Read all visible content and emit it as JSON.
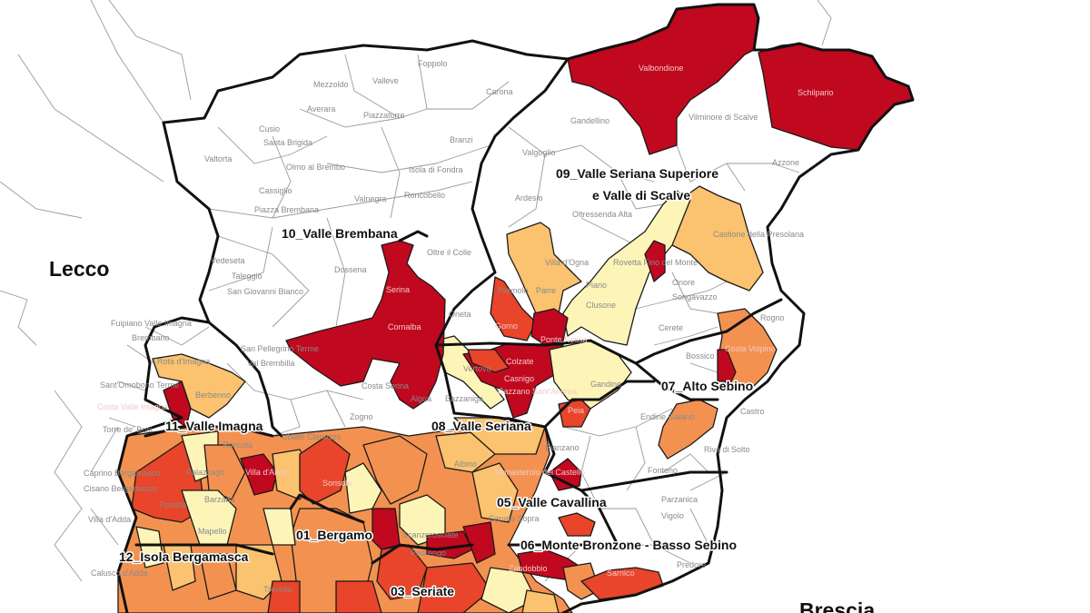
{
  "map": {
    "province_labels": [
      "Lecco",
      "Brescia"
    ],
    "district_labels": [
      "10_Valle Brembana",
      "09_Valle Seriana Superiore",
      "e Valle di Scalve",
      "11_Valle Imagna",
      "08_Valle Seriana",
      "07_Alto Sebino",
      "05_Valle Cavallina",
      "06_Monte Bronzone - Basso Sebino",
      "01_Bergamo",
      "12_Isola Bergamasca",
      "03_Seriate"
    ],
    "municipality_labels": [
      "Foppolo",
      "Valleve",
      "Mezzoldo",
      "Carona",
      "Averara",
      "Piazzatorre",
      "Cusio",
      "Santa Brigida",
      "Branzi",
      "Valtorta",
      "Olmo al Brembo",
      "Isola di Fondra",
      "Cassiglio",
      "Valnegra",
      "Roncobello",
      "Piazza Brembana",
      "Vedeseta",
      "Taleggio",
      "San Giovanni Bianco",
      "Dossena",
      "Oltre il Colle",
      "Serina",
      "Oneta",
      "Cornalba",
      "San Pellegrino Terme",
      "Val Brembilla",
      "Costa Serina",
      "Algua",
      "Bazzaniga",
      "Zogno",
      "Ubiale Clanezzo",
      "Roncola",
      "Fuipiano Valle Imagna",
      "Brembano",
      "Rota d'Imagna",
      "Sant'Omobono Terme",
      "Berbenno",
      "Costa Valle Imagna",
      "Torre de' Busi",
      "Caprino Bergamasco",
      "Cisano Bergamasco",
      "Palazzago",
      "Villa d'Almè",
      "Sorisole",
      "Barzana",
      "Pontida",
      "Villa d'Adda",
      "Mapello",
      "Calusco d'Adda",
      "Treviolo",
      "Scanzorosciate",
      "Pedrengo",
      "Albino",
      "Monasterolo del Castello",
      "Cenate Sopra",
      "Zandobbio",
      "Sarnico",
      "Predore",
      "Vigolo",
      "Parzanica",
      "Fonteno",
      "Riva di Solto",
      "Castro",
      "Endine Gaiano",
      "Bianzano",
      "Peia",
      "Gandino",
      "Vertova",
      "Casnigo",
      "Cazzano Sant'Andrea",
      "Colzate",
      "Gorno",
      "Ponte Nossa",
      "Clusone",
      "Piario",
      "Premolo",
      "Parre",
      "Villa d'Ogna",
      "Oltressenda Alta",
      "Ardesio",
      "Valgoglio",
      "Gandellino",
      "Vilminore di Scalve",
      "Azzone",
      "Castione della Presolana",
      "Rovetta Fino del Monte",
      "Onore",
      "Songavazzo",
      "Cerete",
      "Rogno",
      "Bossico",
      "Costa Volpino",
      "Valbondione",
      "Schilpario"
    ],
    "color_classes": {
      "none": "#ffffff",
      "class1": "#fdf5b8",
      "class2": "#fbc26f",
      "class3": "#f39250",
      "class4": "#e8452a",
      "class5": "#c0081f"
    }
  }
}
